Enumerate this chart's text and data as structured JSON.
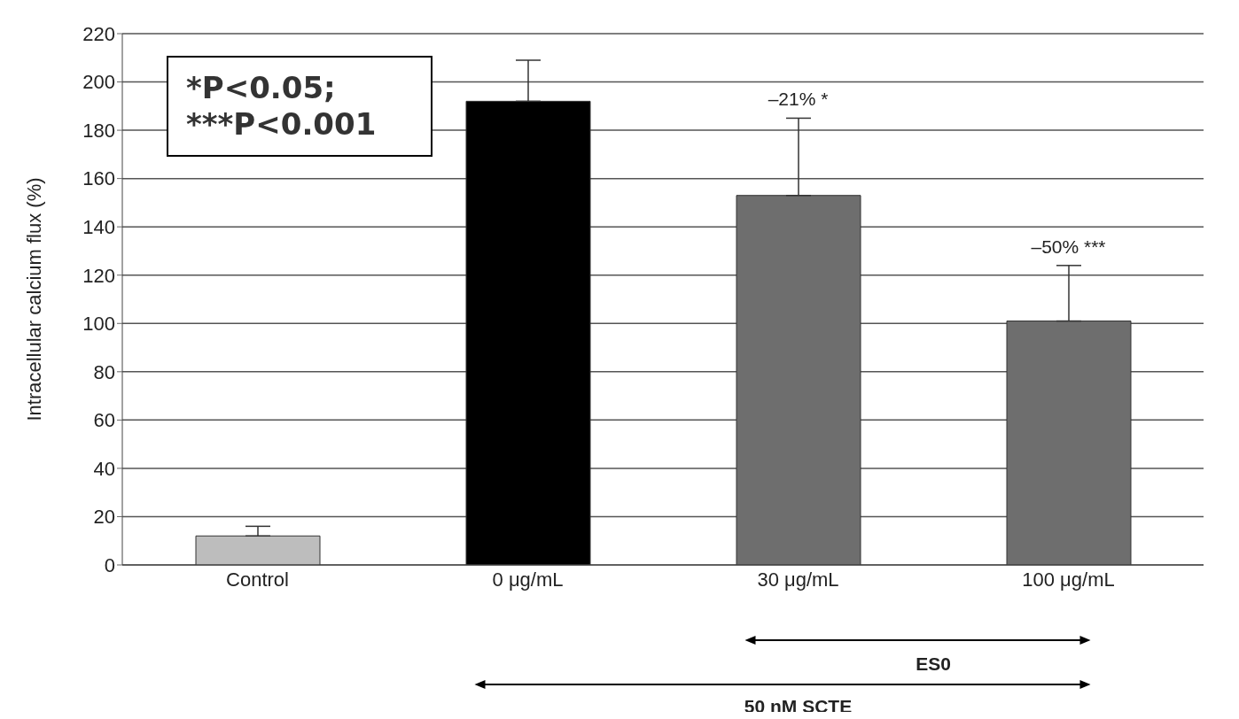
{
  "chart_data": {
    "type": "bar",
    "ylabel": "Intracellular calcium flux (%)",
    "categories": [
      "Control",
      "0 μg/mL",
      "30 μg/mL",
      "100 μg/mL"
    ],
    "values": [
      12,
      192,
      153,
      101
    ],
    "colors": [
      "#bdbdbd",
      "#000000",
      "#6e6e6e",
      "#6e6e6e"
    ],
    "errors": [
      [
        12,
        16
      ],
      [
        192,
        209
      ],
      [
        153,
        185
      ],
      [
        101,
        124
      ]
    ],
    "ylim": [
      0,
      220
    ],
    "yticks": [
      0,
      20,
      40,
      60,
      80,
      100,
      120,
      140,
      160,
      180,
      200,
      220
    ],
    "grid": "y",
    "annotations": [
      "*P<0.05;\n***P<0.001",
      {
        "text": "–21% *",
        "x": "30 μg/mL",
        "y": 185
      },
      {
        "text": "–50% ***",
        "x": "100 μg/mL",
        "y": 124
      },
      "ES0",
      "50 nM SCTE"
    ]
  }
}
